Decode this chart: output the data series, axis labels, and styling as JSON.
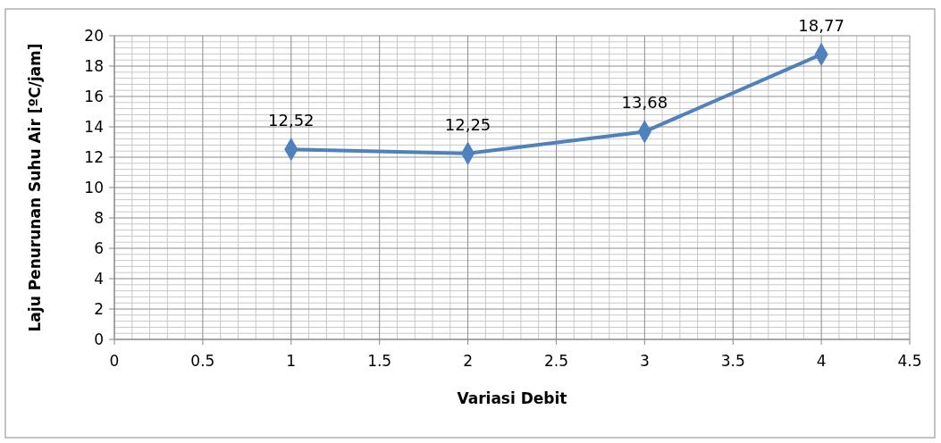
{
  "chart_data": {
    "type": "line",
    "xlabel": "Variasi Debit",
    "ylabel": "Laju Penurunan Suhu Air [ºC/jam]",
    "x": [
      1,
      2,
      3,
      4
    ],
    "series": [
      {
        "color": "#4f81bd",
        "values": [
          12.52,
          12.25,
          13.68,
          18.77
        ],
        "value_labels": [
          "12,52",
          "12,25",
          "13,68",
          "18,77"
        ]
      }
    ],
    "xlim": [
      0,
      4.5
    ],
    "xticks": [
      0,
      0.5,
      1,
      1.5,
      2,
      2.5,
      3,
      3.5,
      4,
      4.5
    ],
    "ylim": [
      0,
      20
    ],
    "yticks": [
      0,
      2,
      4,
      6,
      8,
      10,
      12,
      14,
      16,
      18,
      20
    ],
    "grid": true,
    "marker": "diamond",
    "line_style": "solid"
  }
}
